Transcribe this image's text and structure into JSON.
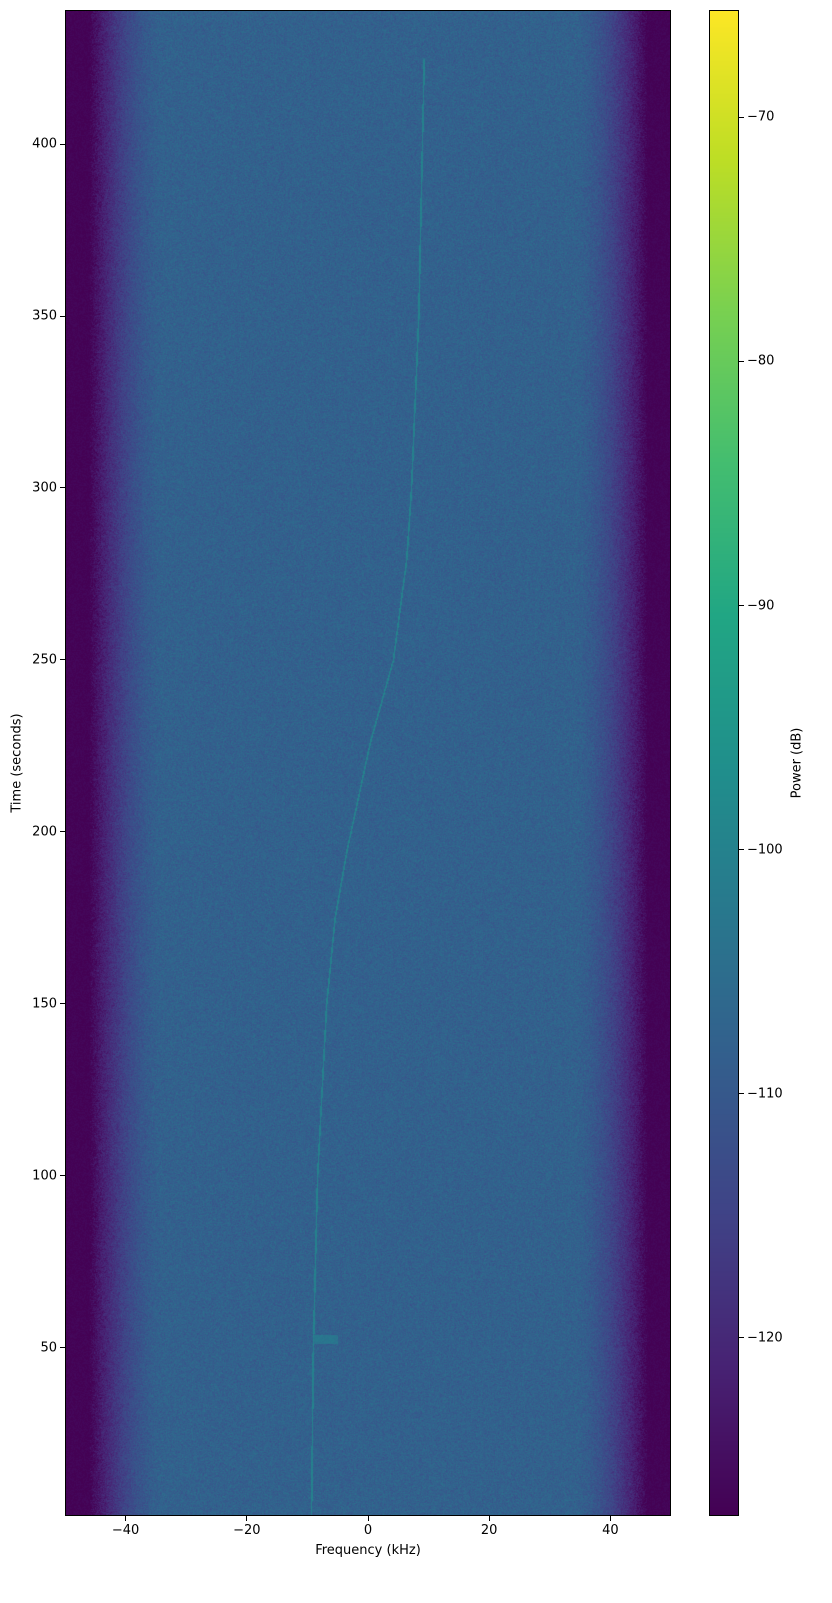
{
  "chart_data": {
    "type": "heatmap",
    "title": "",
    "xlabel": "Frequency (kHz)",
    "ylabel": "Time (seconds)",
    "colorbar_label": "Power (dB)",
    "colormap": "viridis",
    "xlim": [
      -50,
      50
    ],
    "ylim": [
      1,
      439
    ],
    "clim": [
      -127.3,
      -65.6
    ],
    "x_ticks": [
      -40,
      -20,
      0,
      20,
      40
    ],
    "x_tick_labels": [
      "−40",
      "−20",
      "0",
      "20",
      "40"
    ],
    "y_ticks": [
      50,
      100,
      150,
      200,
      250,
      300,
      350,
      400
    ],
    "y_tick_labels": [
      "50",
      "100",
      "150",
      "200",
      "250",
      "300",
      "350",
      "400"
    ],
    "colorbar_ticks": [
      -70,
      -80,
      -90,
      -100,
      -110,
      -120
    ],
    "colorbar_tick_labels": [
      "−70",
      "−80",
      "−90",
      "−100",
      "−110",
      "−120"
    ],
    "noise_floor_db": -108,
    "edge_floor_db": -127,
    "rolloff_khz": [
      34,
      46
    ],
    "signal_db": -100,
    "signal_track": {
      "time_s": [
        1,
        50,
        100,
        150,
        175,
        195,
        226,
        250,
        279,
        300,
        350,
        400,
        425
      ],
      "freq_khz": [
        -9.4,
        -9.1,
        -8.4,
        -6.9,
        -5.5,
        -3.5,
        0.3,
        4.1,
        6.3,
        7.1,
        8.3,
        8.9,
        9.2
      ]
    },
    "burst": {
      "time_s": 52.5,
      "freq_khz": [
        -9,
        -5
      ],
      "power_db": -103
    }
  }
}
